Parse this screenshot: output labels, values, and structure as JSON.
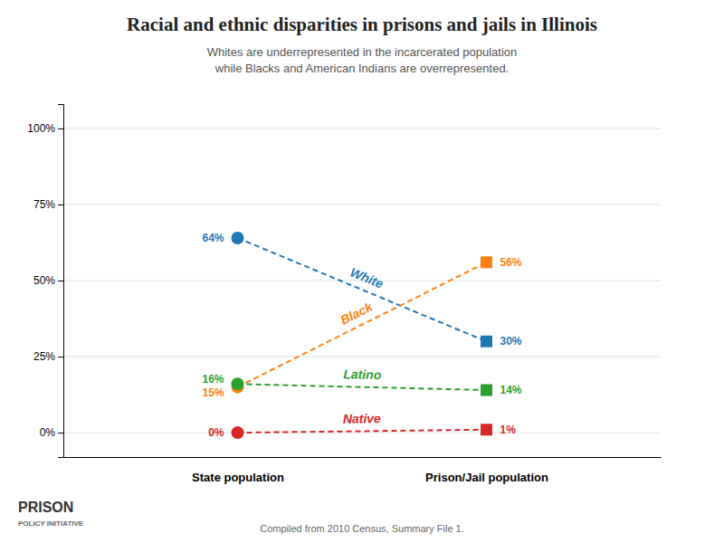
{
  "chart_data": {
    "type": "slope",
    "title": "Racial and ethnic disparities in prisons and jails in Illinois",
    "subtitle": "Whites are underrepresented in the incarcerated population\nwhile Blacks and American Indians are overrepresented.",
    "annotations": [
      "Compiled from 2010 Census, Summary File 1.",
      "PRISON",
      "POLICY INITIATIVE"
    ],
    "categories": [
      "State population",
      "Prison/Jail population"
    ],
    "series": [
      {
        "name": "White",
        "values": [
          64,
          30
        ],
        "value_labels": [
          "64%",
          "30%"
        ]
      },
      {
        "name": "Black",
        "values": [
          15,
          56
        ],
        "value_labels": [
          "15%",
          "56%"
        ]
      },
      {
        "name": "Latino",
        "values": [
          16,
          14
        ],
        "value_labels": [
          "16%",
          "14%"
        ]
      },
      {
        "name": "Native",
        "values": [
          0,
          1
        ],
        "value_labels": [
          "0%",
          "1%"
        ]
      }
    ],
    "ylim": [
      -8,
      108
    ],
    "yticks": [
      {
        "value": 0,
        "label": "0%"
      },
      {
        "value": 25,
        "label": "25%"
      },
      {
        "value": 50,
        "label": "50%"
      },
      {
        "value": 75,
        "label": "75%"
      },
      {
        "value": 100,
        "label": "100%"
      }
    ],
    "grid": true,
    "data_labels": true,
    "line_style": "dashed"
  }
}
